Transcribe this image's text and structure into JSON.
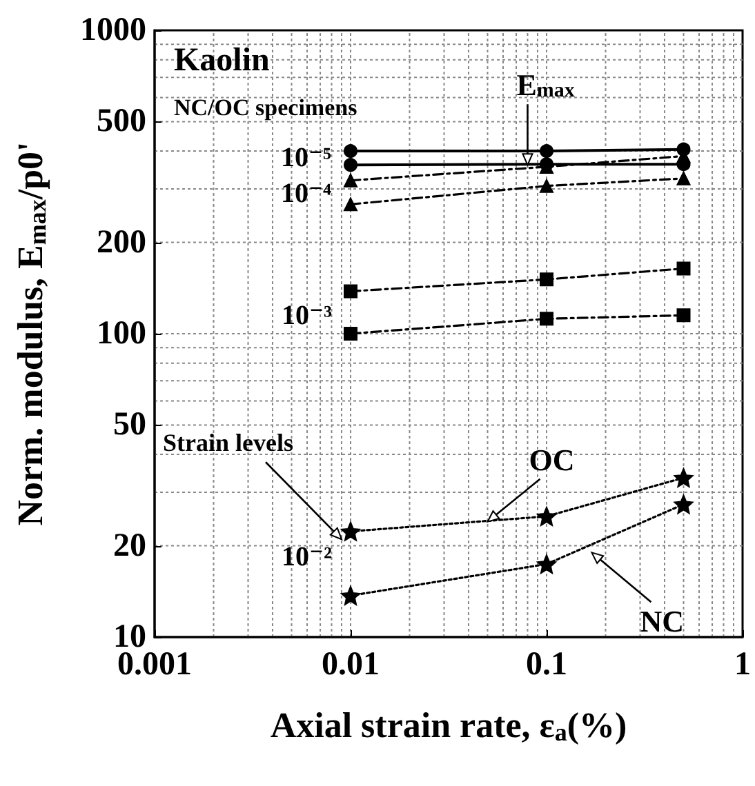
{
  "chart_data": {
    "type": "line",
    "xlabel": "Axial strain rate, ε$_{a}$(%)",
    "ylabel": "Norm. modulus, E$_{max}$/p0'",
    "x": [
      0.01,
      0.1,
      0.5
    ],
    "series": [
      {
        "color": "#000000",
        "values": [
          400,
          400,
          405
        ],
        "marker": "circle",
        "line_style": "solid"
      },
      {
        "color": "#000000",
        "values": [
          360,
          362,
          362
        ],
        "marker": "circle",
        "line_style": "solid"
      },
      {
        "color": "#000000",
        "values": [
          320,
          355,
          385
        ],
        "marker": "triangle",
        "line_style": "dashed"
      },
      {
        "color": "#000000",
        "values": [
          267,
          307,
          325
        ],
        "marker": "triangle",
        "line_style": "dashed"
      },
      {
        "color": "#000000",
        "values": [
          138,
          151,
          164
        ],
        "marker": "square",
        "line_style": "dashed"
      },
      {
        "color": "#000000",
        "values": [
          100,
          112,
          115
        ],
        "marker": "square",
        "line_style": "dashed"
      },
      {
        "color": "#000000",
        "values": [
          22.3,
          25,
          33.5
        ],
        "marker": "star",
        "line_style": "dotted"
      },
      {
        "color": "#000000",
        "values": [
          13.7,
          17.4,
          27.4
        ],
        "marker": "star",
        "line_style": "dotted"
      }
    ],
    "xlim": [
      0.001,
      1
    ],
    "xticks": [
      0.001,
      0.01,
      0.1,
      1
    ],
    "ylim": [
      10,
      1000
    ],
    "yticks": [
      10,
      20,
      50,
      100,
      200,
      500,
      1000
    ],
    "log": "xy",
    "grid": true,
    "annotations": [
      "Kaolin",
      "NC/OC specimens",
      {
        "text": "E$_{max}$",
        "x": 0.08,
        "y": 360
      },
      {
        "text": "10⁻⁵",
        "x": 0.01,
        "y": 380
      },
      {
        "text": "10⁻⁴",
        "x": 0.01,
        "y": 290
      },
      "10⁻³",
      "10⁻²",
      {
        "text": "Strain levels",
        "x": 0.009,
        "y": 21
      },
      {
        "text": "OC",
        "x": 0.05,
        "y": 24
      },
      {
        "text": "NC",
        "x": 0.17,
        "y": 19
      }
    ]
  }
}
